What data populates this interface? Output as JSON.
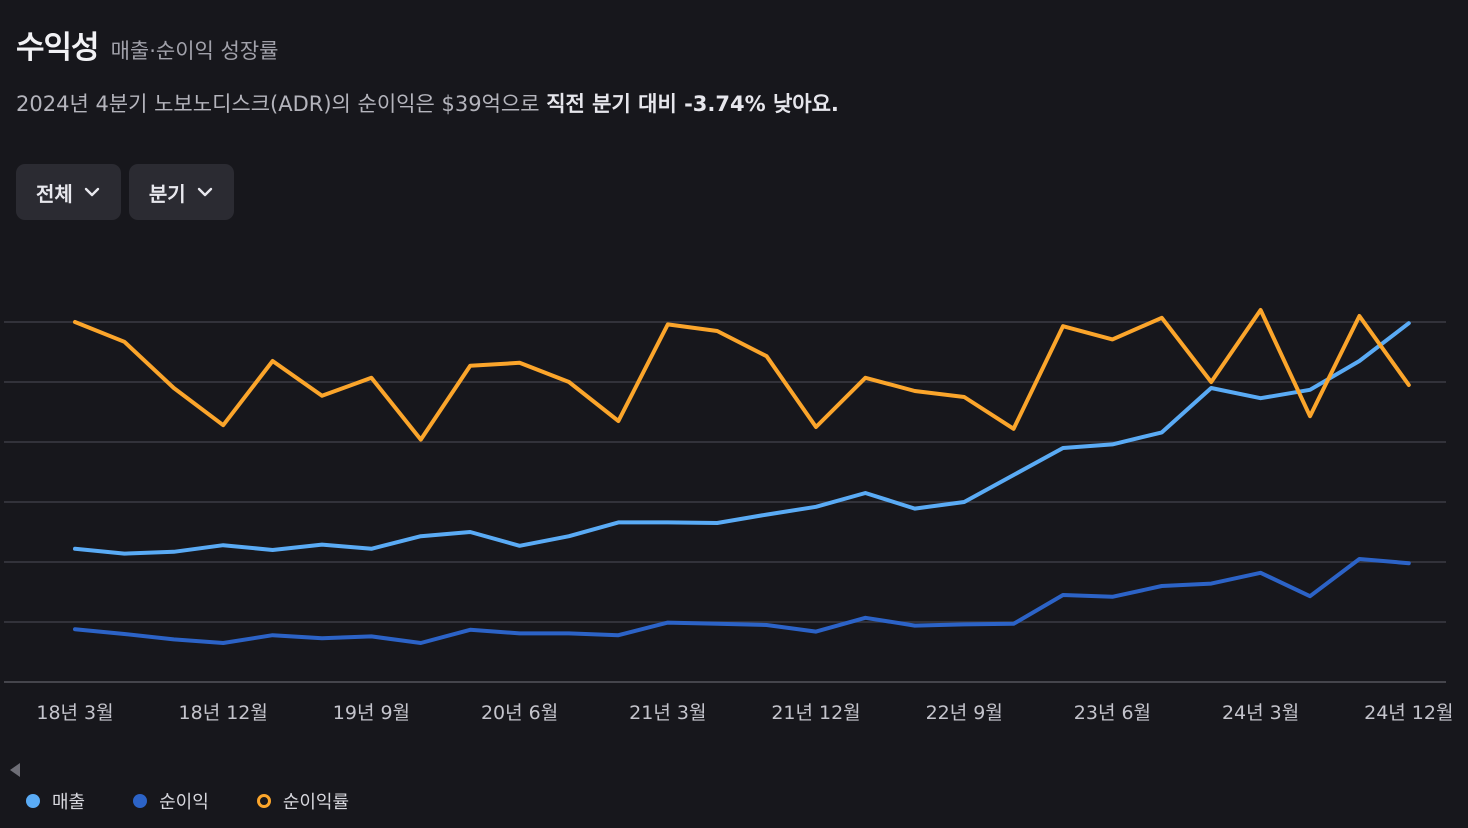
{
  "header": {
    "title": "수익성",
    "subtitle": "매출·순이익 성장률"
  },
  "summary": {
    "prefix": "2024년 4분기 노보노디스크(ADR)의 순이익은 $39억으로 ",
    "emphasis": "직전 분기 대비 -3.74% 낮아요."
  },
  "controls": {
    "range_label": "전체",
    "period_label": "분기"
  },
  "legend": [
    {
      "label": "매출",
      "color": "#5aabf5",
      "style": "filled"
    },
    {
      "label": "순이익",
      "color": "#2c63c7",
      "style": "filled"
    },
    {
      "label": "순이익률",
      "color": "#fba52b",
      "style": "ring"
    }
  ],
  "chart_data": {
    "type": "line",
    "x_ticks": [
      "18년 3월",
      "18년 12월",
      "19년 9월",
      "20년 6월",
      "21년 3월",
      "21년 12월",
      "22년 9월",
      "23년 6월",
      "24년 3월",
      "24년 12월"
    ],
    "tick_every": 3,
    "ylim": [
      0,
      6
    ],
    "gridlines": 7,
    "series": [
      {
        "name": "매출",
        "color": "#5aabf5",
        "values": [
          2.22,
          2.14,
          2.17,
          2.28,
          2.2,
          2.29,
          2.22,
          2.43,
          2.5,
          2.27,
          2.43,
          2.66,
          2.66,
          2.65,
          2.79,
          2.92,
          3.15,
          2.89,
          3.0,
          3.45,
          3.9,
          3.96,
          4.16,
          4.9,
          4.73,
          4.87,
          5.35,
          5.98
        ]
      },
      {
        "name": "순이익",
        "color": "#2c63c7",
        "values": [
          0.88,
          0.8,
          0.71,
          0.65,
          0.78,
          0.73,
          0.76,
          0.65,
          0.87,
          0.81,
          0.81,
          0.78,
          0.99,
          0.97,
          0.95,
          0.84,
          1.07,
          0.94,
          0.96,
          0.97,
          1.45,
          1.42,
          1.6,
          1.64,
          1.82,
          1.43,
          2.05,
          1.98
        ]
      },
      {
        "name": "순이익률",
        "color": "#fba52b",
        "values": [
          6.0,
          5.67,
          4.9,
          4.28,
          5.35,
          4.77,
          5.07,
          4.04,
          5.27,
          5.32,
          5.0,
          4.35,
          5.96,
          5.85,
          5.43,
          4.25,
          5.07,
          4.85,
          4.75,
          4.22,
          5.93,
          5.71,
          6.07,
          5.0,
          6.2,
          4.43,
          6.1,
          4.95
        ]
      }
    ]
  }
}
